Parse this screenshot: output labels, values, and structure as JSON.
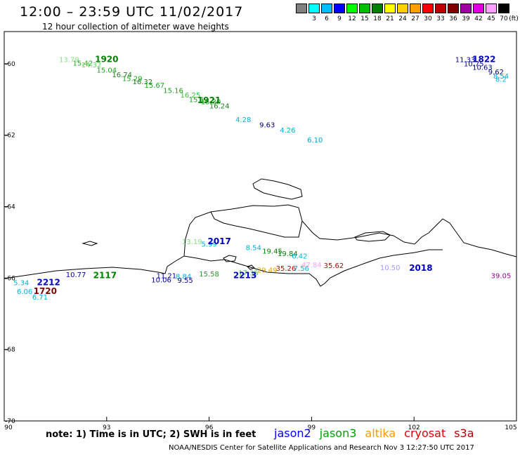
{
  "title": "12:00 – 23:59 UTC 11/02/2017",
  "subtitle": "12 hour collection of altimeter wave heights",
  "colorbar": {
    "unit": "(ft)",
    "colors": [
      "#808080",
      "#00ffff",
      "#00bfff",
      "#0000ff",
      "#00ff00",
      "#00c000",
      "#008000",
      "#ffff00",
      "#ffd000",
      "#ffa000",
      "#ff0000",
      "#c00000",
      "#800000",
      "#a000a0",
      "#e000e0",
      "#ffa0ff",
      "#000000"
    ],
    "labels": [
      "3",
      "6",
      "9",
      "12",
      "15",
      "18",
      "21",
      "24",
      "27",
      "30",
      "33",
      "36",
      "39",
      "42",
      "45",
      "70"
    ]
  },
  "axes": {
    "x_ticks": [
      "90",
      "93",
      "96",
      "99",
      "102",
      "105"
    ],
    "y_ticks": [
      "-60",
      "-62",
      "-64",
      "-66",
      "-68",
      "-70"
    ],
    "xlim": [
      90,
      105
    ],
    "ylim": [
      -70,
      -59.1
    ]
  },
  "pass_times": [
    {
      "text": "1920",
      "lon": 93.0,
      "lat": -59.95,
      "color": "#008000"
    },
    {
      "text": "1921",
      "lon": 96.0,
      "lat": -61.1,
      "color": "#008000"
    },
    {
      "text": "1822",
      "lon": 104.05,
      "lat": -59.95,
      "color": "#0000c0"
    },
    {
      "text": "2017",
      "lon": 96.3,
      "lat": -65.05,
      "color": "#0000c0"
    },
    {
      "text": "2018",
      "lon": 102.2,
      "lat": -65.8,
      "color": "#0000c0"
    },
    {
      "text": "2117",
      "lon": 92.95,
      "lat": -66.0,
      "color": "#008000"
    },
    {
      "text": "2212",
      "lon": 91.3,
      "lat": -66.2,
      "color": "#0000c0"
    },
    {
      "text": "2213",
      "lon": 97.05,
      "lat": -66.0,
      "color": "#0000c0"
    },
    {
      "text": "1720",
      "lon": 91.2,
      "lat": -66.45,
      "color": "#800000"
    }
  ],
  "observations": [
    {
      "text": "13.79",
      "lon": 91.9,
      "lat": -59.95,
      "color": "#80e080"
    },
    {
      "text": "15.42",
      "lon": 92.3,
      "lat": -60.05,
      "color": "#20b020"
    },
    {
      "text": "14.32",
      "lon": 92.55,
      "lat": -60.1,
      "color": "#60d060"
    },
    {
      "text": "15.04",
      "lon": 93.0,
      "lat": -60.25,
      "color": "#20a020"
    },
    {
      "text": "16.74",
      "lon": 93.45,
      "lat": -60.38,
      "color": "#208020"
    },
    {
      "text": "15.29",
      "lon": 93.75,
      "lat": -60.48,
      "color": "#20a020"
    },
    {
      "text": "16.32",
      "lon": 94.05,
      "lat": -60.57,
      "color": "#208020"
    },
    {
      "text": "15.67",
      "lon": 94.4,
      "lat": -60.67,
      "color": "#20a020"
    },
    {
      "text": "15.16",
      "lon": 94.95,
      "lat": -60.82,
      "color": "#20a020"
    },
    {
      "text": "16.25",
      "lon": 95.45,
      "lat": -60.95,
      "color": "#40c040"
    },
    {
      "text": "15.12",
      "lon": 95.7,
      "lat": -61.07,
      "color": "#20a020"
    },
    {
      "text": "15.30",
      "lon": 96.05,
      "lat": -61.13,
      "color": "#20a020"
    },
    {
      "text": "16.24",
      "lon": 96.3,
      "lat": -61.25,
      "color": "#208020"
    },
    {
      "text": "4.28",
      "lon": 97.0,
      "lat": -61.63,
      "color": "#00b0e0"
    },
    {
      "text": "9.63",
      "lon": 97.7,
      "lat": -61.78,
      "color": "#000080"
    },
    {
      "text": "4.26",
      "lon": 98.3,
      "lat": -61.93,
      "color": "#00b0e0"
    },
    {
      "text": "6.10",
      "lon": 99.1,
      "lat": -62.2,
      "color": "#00a0e0"
    },
    {
      "text": "11.33",
      "lon": 103.5,
      "lat": -59.95,
      "color": "#0000a0"
    },
    {
      "text": "10.75",
      "lon": 103.75,
      "lat": -60.07,
      "color": "#0000a0"
    },
    {
      "text": "10.63",
      "lon": 104.0,
      "lat": -60.17,
      "color": "#0000a0"
    },
    {
      "text": "9.62",
      "lon": 104.4,
      "lat": -60.3,
      "color": "#000080"
    },
    {
      "text": "8.54",
      "lon": 104.7,
      "lat": -60.42,
      "color": "#00b0e0"
    },
    {
      "text": "8.2",
      "lon": 104.95,
      "lat": -60.5,
      "color": "#00b0e0"
    },
    {
      "text": "13.19",
      "lon": 95.5,
      "lat": -65.05,
      "color": "#80e080"
    },
    {
      "text": "5.99",
      "lon": 96.0,
      "lat": -65.12,
      "color": "#00b0e0"
    },
    {
      "text": "8.54",
      "lon": 97.3,
      "lat": -65.22,
      "color": "#00b0e0"
    },
    {
      "text": "19.45",
      "lon": 97.85,
      "lat": -65.32,
      "color": "#008000"
    },
    {
      "text": "19.84",
      "lon": 98.3,
      "lat": -65.38,
      "color": "#008000"
    },
    {
      "text": "6.42",
      "lon": 98.65,
      "lat": -65.45,
      "color": "#00b0e0"
    },
    {
      "text": "47.84",
      "lon": 99.0,
      "lat": -65.7,
      "color": "#ffa0ff"
    },
    {
      "text": "35.62",
      "lon": 99.65,
      "lat": -65.72,
      "color": "#c00000"
    },
    {
      "text": "35.26",
      "lon": 98.25,
      "lat": -65.8,
      "color": "#c00000"
    },
    {
      "text": "7.56",
      "lon": 98.7,
      "lat": -65.8,
      "color": "#00b0e0"
    },
    {
      "text": "29.49",
      "lon": 97.7,
      "lat": -65.85,
      "color": "#e0a000"
    },
    {
      "text": "17.35",
      "lon": 97.15,
      "lat": -65.92,
      "color": "#40c040"
    },
    {
      "text": "15.58",
      "lon": 96.0,
      "lat": -65.95,
      "color": "#20a020"
    },
    {
      "text": "10.50",
      "lon": 101.3,
      "lat": -65.78,
      "color": "#a0a0ff"
    },
    {
      "text": "10.77",
      "lon": 92.1,
      "lat": -65.97,
      "color": "#0000a0"
    },
    {
      "text": "11.21",
      "lon": 94.75,
      "lat": -66.0,
      "color": "#0000a0"
    },
    {
      "text": "8.84",
      "lon": 95.25,
      "lat": -66.02,
      "color": "#00b0e0"
    },
    {
      "text": "10.06",
      "lon": 94.6,
      "lat": -66.12,
      "color": "#0000a0"
    },
    {
      "text": "9.55",
      "lon": 95.3,
      "lat": -66.13,
      "color": "#000080"
    },
    {
      "text": "39.05",
      "lon": 104.6,
      "lat": -66.0,
      "color": "#a000a0"
    },
    {
      "text": "5.34",
      "lon": 90.5,
      "lat": -66.2,
      "color": "#00b0e0"
    },
    {
      "text": "6.06",
      "lon": 90.6,
      "lat": -66.45,
      "color": "#00b0e0"
    },
    {
      "text": "6.71",
      "lon": 91.05,
      "lat": -66.6,
      "color": "#00b0e0"
    }
  ],
  "note": "note: 1) Time is in UTC; 2) SWH is in feet",
  "legend": [
    {
      "name": "jason2",
      "color": "#0000ff"
    },
    {
      "name": "jason3",
      "color": "#00a000"
    },
    {
      "name": "altika",
      "color": "#ff9900"
    },
    {
      "name": "cryosat",
      "color": "#e00000"
    },
    {
      "name": "s3a",
      "color": "#b00000"
    }
  ],
  "footer": "NOAA/NESDIS Center for Satellite Applications and Research    Nov  3 12:27:50 UTC 2017"
}
